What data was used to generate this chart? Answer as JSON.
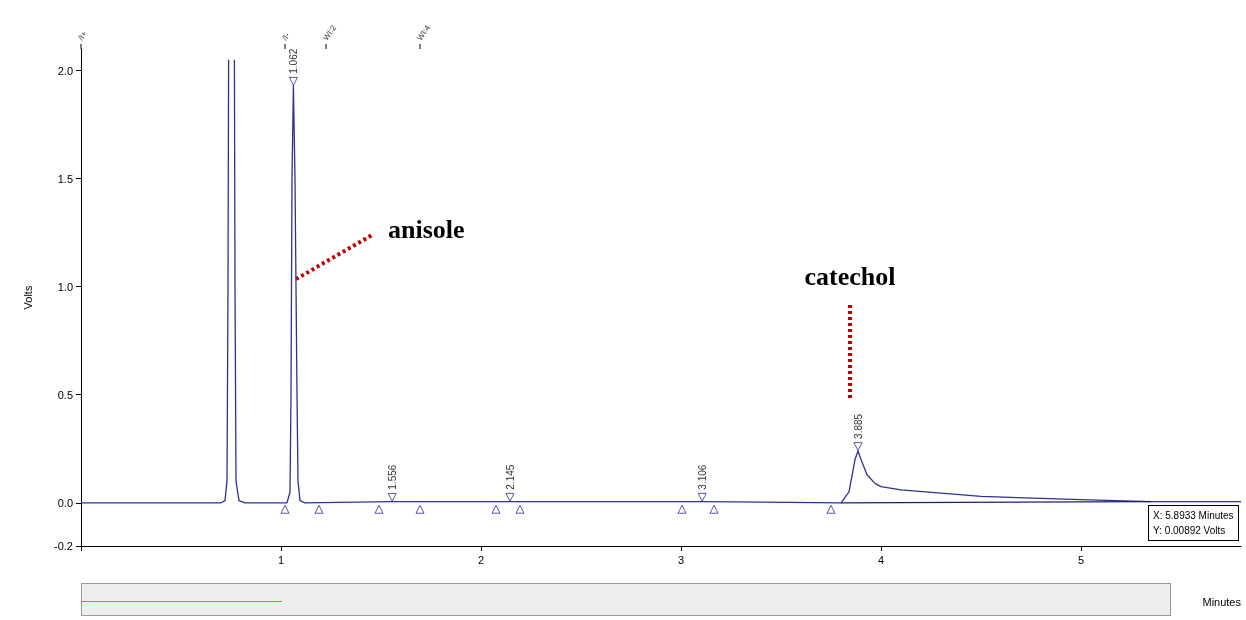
{
  "chart_data": {
    "type": "line",
    "xlabel": "Minutes",
    "ylabel": "Volts",
    "xlim": [
      0,
      5.8
    ],
    "xticks": [
      {
        "value": 0,
        "label": null
      },
      1,
      2,
      3,
      4,
      5
    ],
    "ylim": [
      -0.2,
      2.1
    ],
    "yticks": [
      {
        "value": -0.2,
        "label": "-0.2"
      },
      {
        "value": 0,
        "label": "0.0"
      },
      0.5,
      {
        "value": 1,
        "label": "1.0"
      },
      1.5,
      {
        "value": 2.0,
        "label": "2.0"
      }
    ],
    "series": [
      {
        "color": "#2e3192",
        "x": [
          0,
          0.7,
          0.72,
          0.73,
          0.735,
          0.738,
          0.74,
          0.765,
          0.767,
          0.77,
          0.775,
          0.79,
          0.82,
          1.03,
          1.045,
          1.05,
          1.055,
          1.062,
          1.07,
          1.075,
          1.08,
          1.085,
          1.095,
          1.12,
          1.556,
          2.145,
          3.106,
          3.8,
          3.84,
          3.87,
          3.885,
          3.9,
          3.93,
          3.97,
          4.0,
          4.1,
          4.3,
          4.5,
          4.8,
          5.0,
          5.35,
          5.8
        ],
        "values": [
          0,
          0,
          0.01,
          0.1,
          1.0,
          2.05,
          null,
          null,
          2.05,
          1.0,
          0.1,
          0.01,
          0,
          0,
          0.05,
          0.5,
          1.5,
          1.93,
          1.5,
          1.0,
          0.5,
          0.1,
          0.01,
          0,
          0.005,
          0.005,
          0.005,
          0,
          0.05,
          0.2,
          0.24,
          0.2,
          0.13,
          0.09,
          0.075,
          0.06,
          0.045,
          0.03,
          0.02,
          0.015,
          0.005,
          0.005
        ]
      },
      {
        "color": "#1c1f6e",
        "x": [
          3.8,
          5.35
        ],
        "values": [
          0,
          0.005
        ]
      },
      {
        "type": "scatter",
        "marker": "triangle",
        "color": "#2e3192",
        "x": [
          1.02,
          1.19,
          1.49,
          1.695,
          2.075,
          2.195,
          3.005,
          3.165,
          3.75
        ],
        "values": [
          -0.03,
          -0.03,
          -0.03,
          -0.03,
          -0.03,
          -0.03,
          -0.03,
          -0.03,
          -0.03
        ]
      },
      {
        "type": "scatter",
        "marker": "triangle",
        "color": "#2e3192",
        "x": [
          1.062,
          1.556,
          2.145,
          3.106,
          3.885
        ],
        "values": [
          1.95,
          0.025,
          0.025,
          0.025,
          0.26
        ]
      }
    ],
    "annotations": [
      {
        "text": "1.062",
        "x": 1.062,
        "y": 1.93
      },
      {
        "text": "1.556",
        "x": 1.556,
        "y": 0.005
      },
      {
        "text": "2.145",
        "x": 2.145,
        "y": 0.005
      },
      {
        "text": "3.106",
        "x": 3.106,
        "y": 0.005
      },
      {
        "text": "3.885",
        "x": 3.885,
        "y": 0.24
      },
      {
        "text": "anisole",
        "x": 1.075,
        "y": 1.035
      },
      "catechol",
      "X: 5.8933 Minutes",
      "Y: 0.00892 Volts",
      "/I+",
      "/I-",
      "WI:2",
      "WI:4"
    ]
  }
}
